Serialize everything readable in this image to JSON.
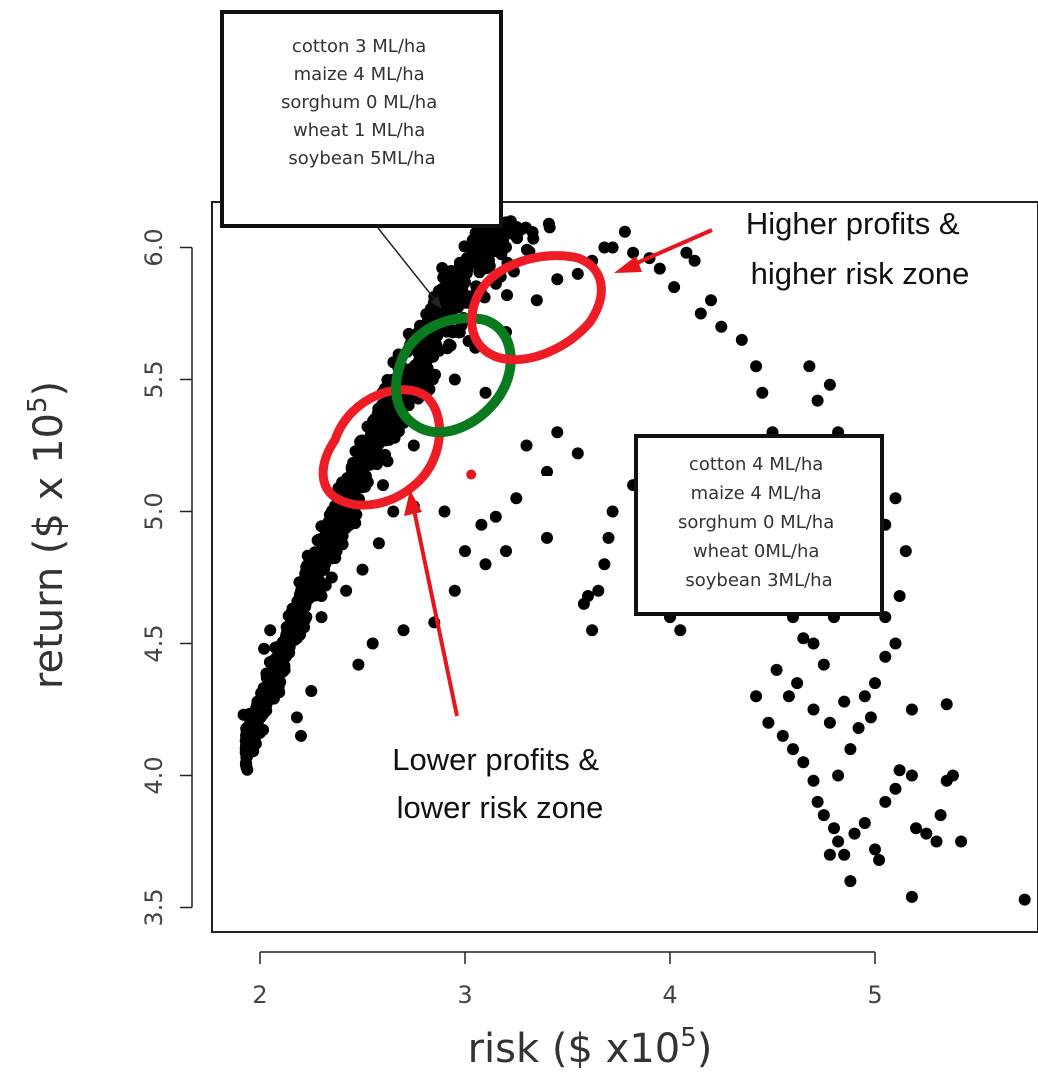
{
  "chart_data": {
    "type": "scatter",
    "title": "",
    "xlabel": "risk ($ x10",
    "xlabel_sup": "5",
    "xlabel_close": ")",
    "ylabel": "return ($ x 10",
    "ylabel_sup": "5",
    "ylabel_close": ")",
    "xlim": [
      1.8,
      5.95
    ],
    "ylim": [
      3.38,
      6.2
    ],
    "x_ticks": [
      2,
      3,
      4,
      5
    ],
    "x_tick_labels": [
      "2",
      "3",
      "4",
      "5"
    ],
    "y_ticks": [
      3.5,
      4.0,
      4.5,
      5.0,
      5.5,
      6.0
    ],
    "y_tick_labels": [
      "3.5",
      "4.0",
      "4.5",
      "5.0",
      "5.5",
      "6.0"
    ],
    "grid": false,
    "point_color": "#000000",
    "highlight_point": {
      "x": 3.03,
      "y": 5.14,
      "color": "#e8151b"
    },
    "explicit_points": [
      [
        1.92,
        4.23
      ],
      [
        1.98,
        4.12
      ],
      [
        2.05,
        4.38
      ],
      [
        2.1,
        4.45
      ],
      [
        2.18,
        4.52
      ],
      [
        2.25,
        4.32
      ],
      [
        2.3,
        4.6
      ],
      [
        2.35,
        4.75
      ],
      [
        2.42,
        4.7
      ],
      [
        2.5,
        4.78
      ],
      [
        2.58,
        4.88
      ],
      [
        2.65,
        5.0
      ],
      [
        2.45,
        5.08
      ],
      [
        2.6,
        5.1
      ],
      [
        2.75,
        5.02
      ],
      [
        2.9,
        5.0
      ],
      [
        3.0,
        4.85
      ],
      [
        3.1,
        4.8
      ],
      [
        2.95,
        4.7
      ],
      [
        2.85,
        4.58
      ],
      [
        2.7,
        4.55
      ],
      [
        2.55,
        4.5
      ],
      [
        2.48,
        4.42
      ],
      [
        2.2,
        4.15
      ],
      [
        2.18,
        4.22
      ],
      [
        2.12,
        4.4
      ],
      [
        2.05,
        4.55
      ],
      [
        2.02,
        4.48
      ],
      [
        2.15,
        4.58
      ],
      [
        2.3,
        4.68
      ],
      [
        2.6,
        5.2
      ],
      [
        2.75,
        5.25
      ],
      [
        2.5,
        5.25
      ],
      [
        2.88,
        5.3
      ],
      [
        2.95,
        5.5
      ],
      [
        3.05,
        5.62
      ],
      [
        3.1,
        5.45
      ],
      [
        3.2,
        5.68
      ],
      [
        3.35,
        5.8
      ],
      [
        3.45,
        5.88
      ],
      [
        3.55,
        5.9
      ],
      [
        3.62,
        5.95
      ],
      [
        3.68,
        6.0
      ],
      [
        3.72,
        6.0
      ],
      [
        3.78,
        6.06
      ],
      [
        3.82,
        5.98
      ],
      [
        3.9,
        5.96
      ],
      [
        3.95,
        5.92
      ],
      [
        4.08,
        5.98
      ],
      [
        4.12,
        5.95
      ],
      [
        4.02,
        5.85
      ],
      [
        4.15,
        5.75
      ],
      [
        4.2,
        5.8
      ],
      [
        4.25,
        5.7
      ],
      [
        4.35,
        5.65
      ],
      [
        4.42,
        5.55
      ],
      [
        4.45,
        5.45
      ],
      [
        4.5,
        5.3
      ],
      [
        4.38,
        5.2
      ],
      [
        4.3,
        5.1
      ],
      [
        4.25,
        5.0
      ],
      [
        4.2,
        4.9
      ],
      [
        4.15,
        4.75
      ],
      [
        4.1,
        4.65
      ],
      [
        4.05,
        4.55
      ],
      [
        4.0,
        4.6
      ],
      [
        3.95,
        4.85
      ],
      [
        3.88,
        5.0
      ],
      [
        3.82,
        5.1
      ],
      [
        3.72,
        5.0
      ],
      [
        3.7,
        4.9
      ],
      [
        3.68,
        4.8
      ],
      [
        3.65,
        4.7
      ],
      [
        3.6,
        4.68
      ],
      [
        3.62,
        4.55
      ],
      [
        3.58,
        4.65
      ],
      [
        3.55,
        5.22
      ],
      [
        3.45,
        5.3
      ],
      [
        3.4,
        5.15
      ],
      [
        3.3,
        5.25
      ],
      [
        3.25,
        5.05
      ],
      [
        3.15,
        4.98
      ],
      [
        3.08,
        4.95
      ],
      [
        3.4,
        4.9
      ],
      [
        3.2,
        4.85
      ],
      [
        4.5,
        4.85
      ],
      [
        4.55,
        4.65
      ],
      [
        4.6,
        4.6
      ],
      [
        4.65,
        4.52
      ],
      [
        4.7,
        4.5
      ],
      [
        4.75,
        4.42
      ],
      [
        4.8,
        4.6
      ],
      [
        4.85,
        4.7
      ],
      [
        4.95,
        4.75
      ],
      [
        5.05,
        4.95
      ],
      [
        5.1,
        5.05
      ],
      [
        5.15,
        4.85
      ],
      [
        5.12,
        4.68
      ],
      [
        5.1,
        4.5
      ],
      [
        5.05,
        4.6
      ],
      [
        4.68,
        5.55
      ],
      [
        4.72,
        5.42
      ],
      [
        4.78,
        5.48
      ],
      [
        4.82,
        5.3
      ],
      [
        4.88,
        5.2
      ],
      [
        4.95,
        5.05
      ],
      [
        4.9,
        4.95
      ],
      [
        4.42,
        4.3
      ],
      [
        4.48,
        4.2
      ],
      [
        4.55,
        4.15
      ],
      [
        4.6,
        4.1
      ],
      [
        4.65,
        4.05
      ],
      [
        4.7,
        3.98
      ],
      [
        4.72,
        3.9
      ],
      [
        4.75,
        3.85
      ],
      [
        4.8,
        3.8
      ],
      [
        4.82,
        3.75
      ],
      [
        4.78,
        3.7
      ],
      [
        4.85,
        3.7
      ],
      [
        4.88,
        3.6
      ],
      [
        4.9,
        3.78
      ],
      [
        4.95,
        3.82
      ],
      [
        5.0,
        3.72
      ],
      [
        5.02,
        3.68
      ],
      [
        5.05,
        3.9
      ],
      [
        5.1,
        3.95
      ],
      [
        5.12,
        4.02
      ],
      [
        5.18,
        4.0
      ],
      [
        5.2,
        3.8
      ],
      [
        5.25,
        3.78
      ],
      [
        5.3,
        3.75
      ],
      [
        5.32,
        3.85
      ],
      [
        5.35,
        3.98
      ],
      [
        5.38,
        4.0
      ],
      [
        5.42,
        3.75
      ],
      [
        5.18,
        4.25
      ],
      [
        5.35,
        4.27
      ],
      [
        5.18,
        3.54
      ],
      [
        5.73,
        3.53
      ],
      [
        4.82,
        4.0
      ],
      [
        4.88,
        4.1
      ],
      [
        4.92,
        4.18
      ],
      [
        4.98,
        4.22
      ],
      [
        5.0,
        4.35
      ],
      [
        5.05,
        4.45
      ],
      [
        4.95,
        4.3
      ],
      [
        4.85,
        4.28
      ],
      [
        4.78,
        4.2
      ],
      [
        4.7,
        4.25
      ],
      [
        4.62,
        4.35
      ],
      [
        4.58,
        4.3
      ],
      [
        4.52,
        4.4
      ]
    ],
    "annotations": [
      {
        "lines": [
          "cotton 3 ML/ha",
          "maize 4 ML/ha",
          "sorghum 0 ML/ha",
          "wheat 1 ML/ha",
          "soybean 5ML/ha"
        ]
      },
      {
        "lines": [
          "cotton 4 ML/ha",
          "maize 4 ML/ha",
          "sorghum 0 ML/ha",
          "wheat 0ML/ha",
          "soybean 3ML/ha"
        ]
      },
      {
        "lines": [
          "Higher profits &",
          "higher risk zone"
        ]
      },
      {
        "lines": [
          "Lower profits &",
          "lower risk zone"
        ]
      }
    ],
    "zone_colors": {
      "red": "#ee1c24",
      "green": "#0a7a1f",
      "arrow_red": "#e8151b"
    }
  }
}
